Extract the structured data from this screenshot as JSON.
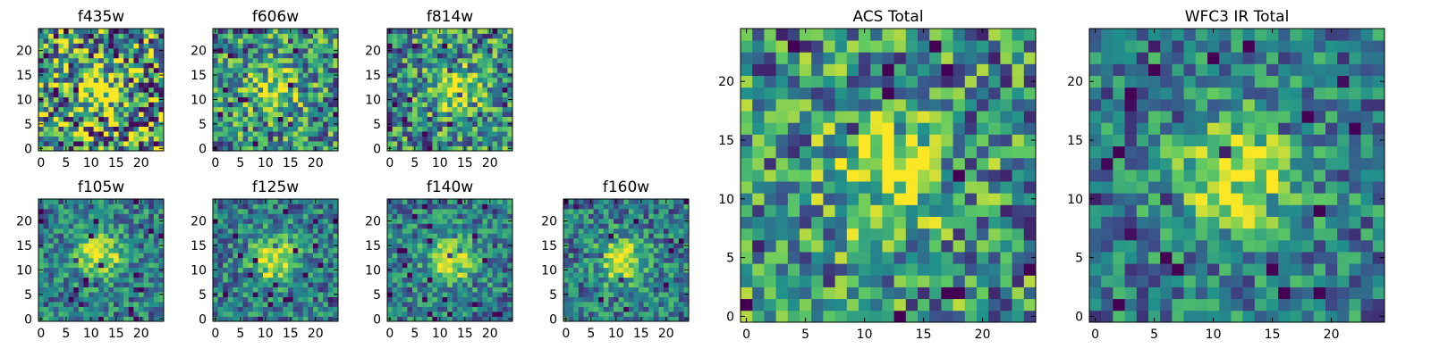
{
  "figure": {
    "colormap": "viridis",
    "colormap_stops": [
      "#440154",
      "#3b528b",
      "#21918c",
      "#5ec962",
      "#fde725"
    ],
    "background": "#ffffff"
  },
  "chart_data": [
    {
      "type": "heatmap",
      "title": "f435w",
      "xlim": [
        0,
        24
      ],
      "ylim": [
        0,
        24
      ],
      "xticks": [
        "0",
        "5",
        "10",
        "15",
        "20"
      ],
      "yticks": [
        "0",
        "5",
        "10",
        "15",
        "20"
      ],
      "peak": [
        12,
        12
      ],
      "brightness": "faint"
    },
    {
      "type": "heatmap",
      "title": "f606w",
      "xlim": [
        0,
        24
      ],
      "ylim": [
        0,
        24
      ],
      "xticks": [
        "0",
        "5",
        "10",
        "15",
        "20"
      ],
      "yticks": [
        "0",
        "5",
        "10",
        "15",
        "20"
      ],
      "peak": [
        12,
        12
      ],
      "brightness": "moderate"
    },
    {
      "type": "heatmap",
      "title": "f814w",
      "xlim": [
        0,
        24
      ],
      "ylim": [
        0,
        24
      ],
      "xticks": [
        "0",
        "5",
        "10",
        "15",
        "20"
      ],
      "yticks": [
        "0",
        "5",
        "10",
        "15",
        "20"
      ],
      "peak": [
        13,
        12
      ],
      "brightness": "moderate"
    },
    {
      "type": "heatmap",
      "title": "f105w",
      "xlim": [
        0,
        24
      ],
      "ylim": [
        0,
        24
      ],
      "xticks": [
        "0",
        "5",
        "10",
        "15",
        "20"
      ],
      "yticks": [
        "0",
        "5",
        "10",
        "15",
        "20"
      ],
      "peak": [
        12,
        13
      ],
      "brightness": "bright"
    },
    {
      "type": "heatmap",
      "title": "f125w",
      "xlim": [
        0,
        24
      ],
      "ylim": [
        0,
        24
      ],
      "xticks": [
        "0",
        "5",
        "10",
        "15",
        "20"
      ],
      "yticks": [
        "0",
        "5",
        "10",
        "15",
        "20"
      ],
      "peak": [
        12,
        12
      ],
      "brightness": "bright"
    },
    {
      "type": "heatmap",
      "title": "f140w",
      "xlim": [
        0,
        24
      ],
      "ylim": [
        0,
        24
      ],
      "xticks": [
        "0",
        "5",
        "10",
        "15",
        "20"
      ],
      "yticks": [
        "0",
        "5",
        "10",
        "15",
        "20"
      ],
      "peak": [
        12,
        12
      ],
      "brightness": "bright"
    },
    {
      "type": "heatmap",
      "title": "f160w",
      "xlim": [
        0,
        24
      ],
      "ylim": [
        0,
        24
      ],
      "xticks": [
        "0",
        "5",
        "10",
        "15",
        "20"
      ],
      "yticks": [
        "0",
        "5",
        "10",
        "15",
        "20"
      ],
      "peak": [
        11,
        12
      ],
      "brightness": "bright"
    },
    {
      "type": "heatmap",
      "title": "ACS Total",
      "xlim": [
        0,
        24
      ],
      "ylim": [
        0,
        24
      ],
      "xticks": [
        "0",
        "5",
        "10",
        "15",
        "20"
      ],
      "yticks": [
        "0",
        "5",
        "10",
        "15",
        "20"
      ],
      "peak": [
        12,
        12
      ],
      "brightness": "moderate"
    },
    {
      "type": "heatmap",
      "title": "WFC3 IR Total",
      "xlim": [
        0,
        24
      ],
      "ylim": [
        0,
        24
      ],
      "xticks": [
        "0",
        "5",
        "10",
        "15",
        "20"
      ],
      "yticks": [
        "0",
        "5",
        "10",
        "15",
        "20"
      ],
      "peak": [
        12,
        12
      ],
      "brightness": "bright"
    }
  ]
}
